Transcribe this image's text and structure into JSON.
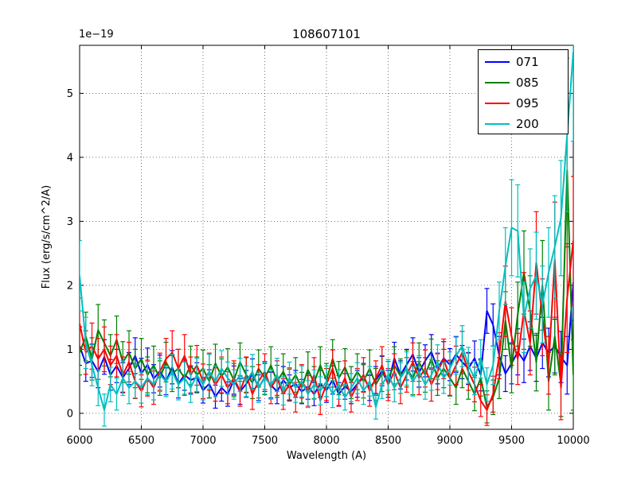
{
  "chart_data": {
    "type": "line",
    "title": "108607101",
    "xlabel": "Wavelength (A)",
    "ylabel": "Flux (erg/s/cm^2/A)",
    "y_offset_text": "1e−19",
    "xlim": [
      6000,
      10000
    ],
    "ylim": [
      -0.25,
      5.75
    ],
    "xticks": [
      6000,
      6500,
      7000,
      7500,
      8000,
      8500,
      9000,
      9500,
      10000
    ],
    "yticks": [
      0,
      1,
      2,
      3,
      4,
      5
    ],
    "grid": true,
    "legend_position": "upper right",
    "x": [
      6000,
      6050,
      6100,
      6150,
      6200,
      6250,
      6300,
      6350,
      6400,
      6450,
      6500,
      6550,
      6600,
      6650,
      6700,
      6750,
      6800,
      6850,
      6900,
      6950,
      7000,
      7050,
      7100,
      7150,
      7200,
      7250,
      7300,
      7350,
      7400,
      7450,
      7500,
      7550,
      7600,
      7650,
      7700,
      7750,
      7800,
      7850,
      7900,
      7950,
      8000,
      8050,
      8100,
      8150,
      8200,
      8250,
      8300,
      8350,
      8400,
      8450,
      8500,
      8550,
      8600,
      8650,
      8700,
      8750,
      8800,
      8850,
      8900,
      8950,
      9000,
      9050,
      9100,
      9150,
      9200,
      9250,
      9300,
      9350,
      9400,
      9450,
      9500,
      9550,
      9600,
      9650,
      9700,
      9750,
      9800,
      9850,
      9900,
      9950,
      10000
    ],
    "series": [
      {
        "name": "071",
        "color": "#0000ff",
        "values": [
          1.05,
          0.78,
          0.82,
          0.65,
          0.88,
          0.6,
          0.74,
          0.56,
          0.7,
          0.9,
          0.62,
          0.76,
          0.54,
          0.66,
          0.5,
          0.72,
          0.46,
          0.6,
          0.52,
          0.56,
          0.36,
          0.46,
          0.26,
          0.4,
          0.3,
          0.52,
          0.34,
          0.46,
          0.62,
          0.4,
          0.56,
          0.44,
          0.34,
          0.52,
          0.4,
          0.46,
          0.34,
          0.42,
          0.3,
          0.46,
          0.36,
          0.52,
          0.3,
          0.42,
          0.34,
          0.46,
          0.56,
          0.4,
          0.52,
          0.66,
          0.46,
          0.86,
          0.6,
          0.76,
          0.92,
          0.64,
          0.82,
          0.96,
          0.7,
          0.86,
          0.76,
          0.92,
          0.8,
          0.7,
          0.86,
          0.6,
          1.6,
          1.38,
          0.9,
          0.62,
          0.78,
          0.96,
          0.82,
          1.05,
          0.86,
          1.1,
          0.95,
          1.05,
          0.88,
          0.75,
          2.05
        ],
        "err": [
          0.3,
          0.28,
          0.26,
          0.25,
          0.27,
          0.24,
          0.26,
          0.23,
          0.25,
          0.28,
          0.24,
          0.26,
          0.22,
          0.25,
          0.21,
          0.26,
          0.22,
          0.24,
          0.22,
          0.23,
          0.2,
          0.22,
          0.18,
          0.21,
          0.19,
          0.22,
          0.2,
          0.21,
          0.23,
          0.2,
          0.22,
          0.2,
          0.19,
          0.21,
          0.2,
          0.21,
          0.19,
          0.2,
          0.18,
          0.21,
          0.19,
          0.22,
          0.18,
          0.2,
          0.19,
          0.21,
          0.22,
          0.2,
          0.21,
          0.23,
          0.21,
          0.25,
          0.22,
          0.24,
          0.26,
          0.23,
          0.25,
          0.27,
          0.24,
          0.26,
          0.25,
          0.28,
          0.26,
          0.25,
          0.27,
          0.25,
          0.35,
          0.33,
          0.3,
          0.28,
          0.32,
          0.36,
          0.34,
          0.38,
          0.36,
          0.4,
          0.38,
          0.42,
          0.4,
          0.45,
          0.6
        ]
      },
      {
        "name": "085",
        "color": "#008000",
        "values": [
          0.95,
          1.2,
          0.85,
          1.3,
          1.1,
          0.9,
          1.15,
          0.8,
          0.95,
          0.7,
          0.85,
          0.6,
          0.75,
          0.55,
          0.8,
          0.62,
          0.7,
          0.55,
          0.75,
          0.6,
          0.7,
          0.5,
          0.78,
          0.58,
          0.72,
          0.52,
          0.8,
          0.6,
          0.48,
          0.7,
          0.55,
          0.75,
          0.5,
          0.65,
          0.45,
          0.6,
          0.4,
          0.68,
          0.48,
          0.75,
          0.52,
          0.85,
          0.55,
          0.72,
          0.48,
          0.65,
          0.5,
          0.7,
          0.45,
          0.62,
          0.55,
          0.75,
          0.58,
          0.7,
          0.55,
          0.8,
          0.6,
          0.85,
          0.55,
          0.7,
          0.55,
          0.4,
          0.7,
          0.5,
          0.3,
          0.55,
          0.1,
          0.25,
          0.55,
          1.45,
          0.7,
          1.55,
          2.2,
          1.6,
          0.8,
          2.0,
          0.5,
          1.2,
          0.45,
          3.8,
          0.6
        ],
        "err": [
          0.35,
          0.38,
          0.33,
          0.4,
          0.36,
          0.33,
          0.37,
          0.32,
          0.34,
          0.3,
          0.32,
          0.28,
          0.3,
          0.27,
          0.31,
          0.28,
          0.3,
          0.27,
          0.3,
          0.28,
          0.29,
          0.26,
          0.3,
          0.27,
          0.29,
          0.26,
          0.3,
          0.27,
          0.25,
          0.29,
          0.26,
          0.29,
          0.25,
          0.28,
          0.24,
          0.27,
          0.24,
          0.28,
          0.25,
          0.29,
          0.26,
          0.3,
          0.26,
          0.29,
          0.25,
          0.28,
          0.26,
          0.29,
          0.25,
          0.28,
          0.26,
          0.29,
          0.27,
          0.29,
          0.26,
          0.3,
          0.27,
          0.31,
          0.27,
          0.3,
          0.28,
          0.26,
          0.3,
          0.28,
          0.26,
          0.28,
          0.25,
          0.27,
          0.32,
          0.45,
          0.38,
          0.5,
          0.65,
          0.55,
          0.45,
          0.7,
          0.45,
          0.6,
          0.5,
          1.2,
          0.55
        ]
      },
      {
        "name": "095",
        "color": "#ff0000",
        "values": [
          1.4,
          0.95,
          1.05,
          0.85,
          1.0,
          0.75,
          0.9,
          0.6,
          0.8,
          0.5,
          0.35,
          0.55,
          0.4,
          0.65,
          0.85,
          0.95,
          0.7,
          0.9,
          0.6,
          0.75,
          0.5,
          0.65,
          0.45,
          0.6,
          0.4,
          0.55,
          0.35,
          0.6,
          0.3,
          0.5,
          0.65,
          0.4,
          0.55,
          0.3,
          0.45,
          0.25,
          0.5,
          0.35,
          0.6,
          0.2,
          0.45,
          0.7,
          0.35,
          0.55,
          0.25,
          0.45,
          0.6,
          0.35,
          0.55,
          0.75,
          0.45,
          0.65,
          0.4,
          0.6,
          0.8,
          0.55,
          0.7,
          0.45,
          0.65,
          0.85,
          0.55,
          0.75,
          0.95,
          0.65,
          0.45,
          0.2,
          0.05,
          0.3,
          0.9,
          1.75,
          1.2,
          0.85,
          1.6,
          1.1,
          2.35,
          1.5,
          0.75,
          2.4,
          0.4,
          1.8,
          2.7
        ],
        "err": [
          0.4,
          0.34,
          0.36,
          0.32,
          0.35,
          0.3,
          0.33,
          0.28,
          0.31,
          0.27,
          0.25,
          0.28,
          0.26,
          0.29,
          0.32,
          0.34,
          0.3,
          0.33,
          0.28,
          0.31,
          0.27,
          0.29,
          0.26,
          0.28,
          0.25,
          0.27,
          0.24,
          0.28,
          0.24,
          0.26,
          0.28,
          0.25,
          0.27,
          0.24,
          0.26,
          0.23,
          0.26,
          0.24,
          0.27,
          0.22,
          0.25,
          0.29,
          0.24,
          0.27,
          0.23,
          0.25,
          0.27,
          0.24,
          0.27,
          0.29,
          0.25,
          0.28,
          0.25,
          0.27,
          0.3,
          0.26,
          0.29,
          0.26,
          0.28,
          0.31,
          0.27,
          0.3,
          0.33,
          0.29,
          0.27,
          0.25,
          0.24,
          0.28,
          0.36,
          0.55,
          0.45,
          0.4,
          0.6,
          0.5,
          0.8,
          0.6,
          0.45,
          0.9,
          0.5,
          0.85,
          1.0
        ]
      },
      {
        "name": "200",
        "color": "#00bfbf",
        "values": [
          2.15,
          1.1,
          0.75,
          0.4,
          0.05,
          0.45,
          0.3,
          0.55,
          0.4,
          0.5,
          0.4,
          0.55,
          0.45,
          0.6,
          0.5,
          0.65,
          0.45,
          0.55,
          0.4,
          0.6,
          0.45,
          0.65,
          0.5,
          0.7,
          0.55,
          0.45,
          0.6,
          0.5,
          0.65,
          0.4,
          0.55,
          0.45,
          0.6,
          0.35,
          0.55,
          0.4,
          0.5,
          0.3,
          0.45,
          0.35,
          0.5,
          0.3,
          0.45,
          0.25,
          0.4,
          0.55,
          0.35,
          0.5,
          0.1,
          0.45,
          0.6,
          0.4,
          0.55,
          0.7,
          0.5,
          0.65,
          0.45,
          0.6,
          0.8,
          0.55,
          0.7,
          0.9,
          1.05,
          0.75,
          0.55,
          0.85,
          0.45,
          0.75,
          1.6,
          2.3,
          2.9,
          2.85,
          1.5,
          1.95,
          2.15,
          1.7,
          2.2,
          2.6,
          3.05,
          4.35,
          5.65
        ],
        "err": [
          0.55,
          0.4,
          0.32,
          0.28,
          0.25,
          0.27,
          0.25,
          0.27,
          0.25,
          0.26,
          0.24,
          0.26,
          0.24,
          0.26,
          0.24,
          0.27,
          0.24,
          0.25,
          0.23,
          0.26,
          0.24,
          0.27,
          0.24,
          0.28,
          0.25,
          0.23,
          0.26,
          0.24,
          0.27,
          0.23,
          0.25,
          0.23,
          0.26,
          0.22,
          0.25,
          0.23,
          0.24,
          0.21,
          0.23,
          0.22,
          0.24,
          0.21,
          0.23,
          0.2,
          0.22,
          0.24,
          0.21,
          0.23,
          0.19,
          0.22,
          0.24,
          0.22,
          0.24,
          0.26,
          0.23,
          0.25,
          0.23,
          0.24,
          0.27,
          0.24,
          0.26,
          0.29,
          0.32,
          0.28,
          0.26,
          0.3,
          0.26,
          0.3,
          0.45,
          0.6,
          0.75,
          0.72,
          0.55,
          0.62,
          0.68,
          0.6,
          0.7,
          0.8,
          0.9,
          1.2,
          1.4
        ]
      }
    ]
  }
}
